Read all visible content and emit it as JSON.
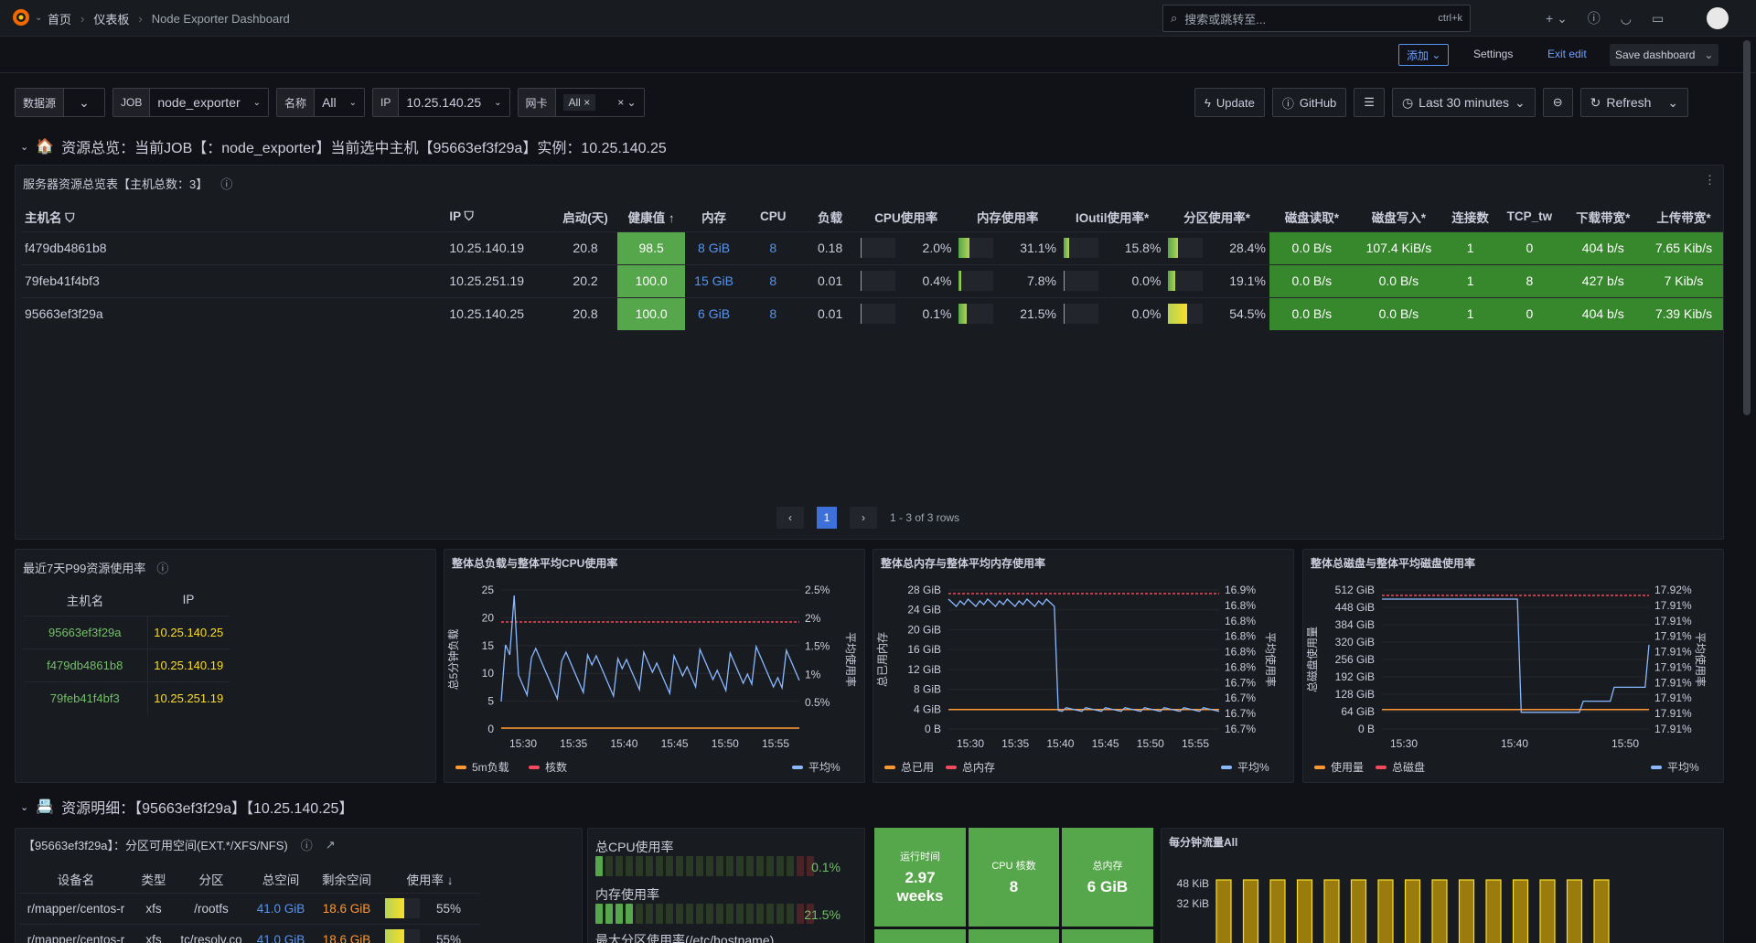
{
  "nav": {
    "breadcrumb": [
      "首页",
      "仪表板",
      "Node Exporter Dashboard"
    ],
    "search_placeholder": "搜索或跳转至...",
    "shortcut": "ctrl+k"
  },
  "toolbar": {
    "add": "添加",
    "settings": "Settings",
    "exit_edit": "Exit edit",
    "save": "Save dashboard"
  },
  "vars": [
    {
      "label": "数据源",
      "value": ""
    },
    {
      "label": "JOB",
      "value": "node_exporter"
    },
    {
      "label": "名称",
      "value": "All"
    },
    {
      "label": "IP",
      "value": "10.25.140.25"
    },
    {
      "label": "网卡",
      "value": "All"
    }
  ],
  "actions": {
    "update": "Update",
    "github": "GitHub",
    "time": "Last 30 minutes",
    "refresh": "Refresh"
  },
  "row1": {
    "title": "资源总览：当前JOB【：node_exporter】当前选中主机【95663ef3f29a】实例：10.25.140.25"
  },
  "overview": {
    "title": "服务器资源总览表【主机总数：3】",
    "headers": [
      "主机名",
      "IP",
      "启动(天)",
      "健康值",
      "内存",
      "CPU",
      "负载",
      "CPU使用率",
      "内存使用率",
      "IOutil使用率*",
      "分区使用率*",
      "磁盘读取*",
      "磁盘写入*",
      "连接数",
      "TCP_tw",
      "下载带宽*",
      "上传带宽*"
    ],
    "rows": [
      {
        "host": "f479db4861b8",
        "ip": "10.25.140.19",
        "uptime": "20.8",
        "health": "98.5",
        "mem": "8 GiB",
        "cpu": "8",
        "load": "0.18",
        "cpu_pct": "2.0%",
        "cpu_v": 0.02,
        "mem_pct": "31.1%",
        "mem_v": 0.311,
        "io_pct": "15.8%",
        "io_v": 0.158,
        "part_pct": "28.4%",
        "part_v": 0.284,
        "read": "0.0 B/s",
        "write": "107.4 KiB/s",
        "conn": "1",
        "tw": "0",
        "down": "404 b/s",
        "up": "7.65 Kib/s"
      },
      {
        "host": "79feb41f4bf3",
        "ip": "10.25.251.19",
        "uptime": "20.2",
        "health": "100.0",
        "mem": "15 GiB",
        "cpu": "8",
        "load": "0.01",
        "cpu_pct": "0.4%",
        "cpu_v": 0.004,
        "mem_pct": "7.8%",
        "mem_v": 0.078,
        "io_pct": "0.0%",
        "io_v": 0,
        "part_pct": "19.1%",
        "part_v": 0.191,
        "read": "0.0 B/s",
        "write": "0.0 B/s",
        "conn": "1",
        "tw": "8",
        "down": "427 b/s",
        "up": "7 Kib/s"
      },
      {
        "host": "95663ef3f29a",
        "ip": "10.25.140.25",
        "uptime": "20.8",
        "health": "100.0",
        "mem": "6 GiB",
        "cpu": "8",
        "load": "0.01",
        "cpu_pct": "0.1%",
        "cpu_v": 0.001,
        "mem_pct": "21.5%",
        "mem_v": 0.215,
        "io_pct": "0.0%",
        "io_v": 0,
        "part_pct": "54.5%",
        "part_v": 0.545,
        "read": "0.0 B/s",
        "write": "0.0 B/s",
        "conn": "1",
        "tw": "0",
        "down": "404 b/s",
        "up": "7.39 Kib/s"
      }
    ],
    "page": "1",
    "rows_info": "1 - 3 of 3 rows"
  },
  "p99": {
    "title": "最近7天P99资源使用率",
    "headers": [
      "主机名",
      "IP"
    ],
    "rows": [
      [
        "95663ef3f29a",
        "10.25.140.25"
      ],
      [
        "f479db4861b8",
        "10.25.140.19"
      ],
      [
        "79feb41f4bf3",
        "10.25.251.19"
      ]
    ]
  },
  "chart_data": [
    {
      "type": "line",
      "title": "整体总负载与整体平均CPU使用率",
      "x": [
        "15:30",
        "15:35",
        "15:40",
        "15:45",
        "15:50",
        "15:55"
      ],
      "yleft": [
        "0",
        "5",
        "10",
        "15",
        "20",
        "25"
      ],
      "yright": [
        "0.5%",
        "1%",
        "1.5%",
        "2%",
        "2.5%"
      ],
      "ylabel_left": "总5分钟负载",
      "ylabel_right": "平均使用率",
      "series": [
        {
          "name": "5m负载",
          "color": "#ff9830"
        },
        {
          "name": "核数",
          "color": "#f2495c"
        },
        {
          "name": "平均%",
          "color": "#8ab8ff"
        }
      ]
    },
    {
      "type": "line",
      "title": "整体总内存与整体平均内存使用率",
      "x": [
        "15:30",
        "15:35",
        "15:40",
        "15:45",
        "15:50",
        "15:55"
      ],
      "yleft": [
        "0 B",
        "4 GiB",
        "8 GiB",
        "12 GiB",
        "16 GiB",
        "20 GiB",
        "24 GiB",
        "28 GiB"
      ],
      "yright": [
        "16.7%",
        "16.7%",
        "16.7%",
        "16.7%",
        "16.8%",
        "16.8%",
        "16.8%",
        "16.8%",
        "16.8%",
        "16.9%"
      ],
      "ylabel_left": "总已用内存",
      "ylabel_right": "平均使用率",
      "series": [
        {
          "name": "总已用",
          "color": "#ff9830"
        },
        {
          "name": "总内存",
          "color": "#f2495c"
        },
        {
          "name": "平均%",
          "color": "#8ab8ff"
        }
      ]
    },
    {
      "type": "line",
      "title": "整体总磁盘与整体平均磁盘使用率",
      "x": [
        "15:30",
        "15:40",
        "15:50"
      ],
      "yleft": [
        "0 B",
        "64 GiB",
        "128 GiB",
        "192 GiB",
        "256 GiB",
        "320 GiB",
        "384 GiB",
        "448 GiB",
        "512 GiB"
      ],
      "yright": [
        "17.91%",
        "17.91%",
        "17.91%",
        "17.91%",
        "17.91%",
        "17.91%",
        "17.91%",
        "17.91%",
        "17.91%",
        "17.92%"
      ],
      "ylabel_left": "总磁盘使用量",
      "ylabel_right": "平均使用率",
      "series": [
        {
          "name": "使用量",
          "color": "#ff9830"
        },
        {
          "name": "总磁盘",
          "color": "#f2495c"
        },
        {
          "name": "平均%",
          "color": "#8ab8ff"
        }
      ]
    },
    {
      "type": "bar",
      "title": "每分钟流量All",
      "yticks": [
        "48 KiB",
        "32 KiB"
      ],
      "bars": 15
    }
  ],
  "row2": {
    "title": "资源明细：【95663ef3f29a】【10.25.140.25】"
  },
  "partition": {
    "title": "【95663ef3f29a】：分区可用空间(EXT.*/XFS/NFS)",
    "headers": [
      "设备名",
      "类型",
      "分区",
      "总空间",
      "剩余空间",
      "使用率"
    ],
    "rows": [
      [
        "r/mapper/centos-r",
        "xfs",
        "/rootfs",
        "41.0 GiB",
        "18.6 GiB",
        "55%"
      ],
      [
        "r/mapper/centos-r",
        "xfs",
        "tc/resolv.co",
        "41.0 GiB",
        "18.6 GiB",
        "55%"
      ]
    ]
  },
  "gauges": {
    "cpu_title": "总CPU使用率",
    "cpu_val": "0.1%",
    "mem_title": "内存使用率",
    "mem_val": "21.5%",
    "part_title": "最大分区使用率(/etc/hostname)"
  },
  "stats": [
    {
      "label": "运行时间",
      "value": "2.97 weeks"
    },
    {
      "label": "CPU 核数",
      "value": "8"
    },
    {
      "label": "总内存",
      "value": "6 GiB"
    }
  ]
}
